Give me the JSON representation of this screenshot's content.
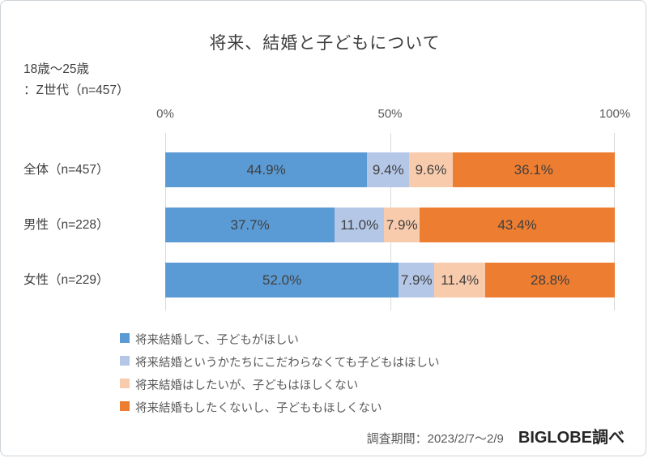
{
  "page": {
    "title": "将来、結婚と子どもについて",
    "subtitle_line1": "18歳〜25歳",
    "subtitle_line2": "：Z世代（n=457）",
    "footer": {
      "survey_period": "調査期間：2023/2/7〜2/9",
      "source": "BIGLOBE調べ"
    }
  },
  "chart_data": {
    "type": "bar",
    "variant": "horizontal-stacked-100",
    "title": "将来、結婚と子どもについて",
    "categories": [
      "全体（n=457）",
      "男性（n=228）",
      "女性（n=229）"
    ],
    "series": [
      {
        "name": "将来結婚して、子どもがほしい",
        "color": "#5B9BD5",
        "values": [
          44.9,
          37.7,
          52.0
        ]
      },
      {
        "name": "将来結婚というかたちにこだわらなくても子どもはほしい",
        "color": "#B4C7E7",
        "values": [
          9.4,
          11.0,
          7.9
        ]
      },
      {
        "name": "将来結婚はしたいが、子どもはほしくない",
        "color": "#F8CBAD",
        "values": [
          9.6,
          7.9,
          11.4
        ]
      },
      {
        "name": "将来結婚もしたくないし、子どももほしくない",
        "color": "#ED7D31",
        "values": [
          36.1,
          43.4,
          28.8
        ]
      }
    ],
    "x_axis": {
      "ticks": [
        "0%",
        "50%",
        "100%"
      ],
      "range": [
        0,
        100
      ]
    },
    "grid": true,
    "gridline_color": "#d9d9d9",
    "legend_position": "bottom-left",
    "data_label_format": "0.0%"
  }
}
